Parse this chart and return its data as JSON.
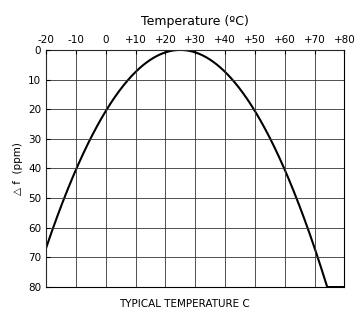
{
  "title_top": "Temperature (ºC)",
  "xlabel_bottom": "TYPICAL TEMPERATURE C",
  "ylabel": "△ f  (ppm)",
  "x_min": -20,
  "x_max": 80,
  "y_min": 0,
  "y_max": 80,
  "x_ticks": [
    -20,
    -10,
    0,
    10,
    20,
    30,
    40,
    50,
    60,
    70,
    80
  ],
  "x_tick_labels": [
    "-20",
    "-10",
    "0",
    "+10",
    "+20",
    "+30",
    "+40",
    "+50",
    "+60",
    "+70",
    "+80"
  ],
  "y_ticks": [
    0,
    10,
    20,
    30,
    40,
    50,
    60,
    70,
    80
  ],
  "curve_color": "#000000",
  "curve_linewidth": 1.5,
  "grid_color": "#333333",
  "grid_linewidth": 0.6,
  "background_color": "#ffffff",
  "title_fontsize": 9,
  "label_fontsize": 7.5,
  "tick_fontsize": 7.5,
  "peak_temp": 25,
  "a_coeff": 0.034
}
